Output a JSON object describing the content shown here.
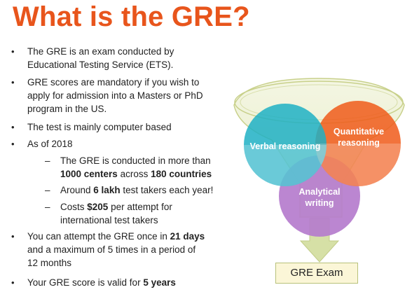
{
  "title": "What is the GRE?",
  "bullets": {
    "b1_l1": "The GRE is an exam conducted by",
    "b1_l2": "Educational Testing Service (ETS).",
    "b2_l1": "GRE scores are mandatory if you wish to",
    "b2_l2": "apply for admission into a Masters or PhD",
    "b2_l3": "program in the US.",
    "b3_l1": "The test is mainly computer based",
    "b4_l1": "As of 2018",
    "s1_l1": "The GRE is conducted in more than",
    "s1_l2_bold1": "1000 centers",
    "s1_l2_mid": " across ",
    "s1_l2_bold2": "180 countries",
    "s2_pre": "Around ",
    "s2_bold": "6 lakh",
    "s2_post": " test takers each year!",
    "s3_pre": "Costs ",
    "s3_bold": "$205",
    "s3_post": " per attempt for",
    "s3_l2": "international test takers",
    "b5_pre": "You can attempt the GRE once in ",
    "b5_bold": "21 days",
    "b5_l2": "and a maximum of 5 times in a period of",
    "b5_l3": "12 months",
    "b6_pre": "Your GRE score is valid for ",
    "b6_bold": "5 years",
    "bullet_char": "•",
    "dash_char": "–"
  },
  "diagram": {
    "verbal": "Verbal reasoning",
    "quant_l1": "Quantitative",
    "quant_l2": "reasoning",
    "analytical_l1": "Analytical",
    "analytical_l2": "writing",
    "result": "GRE Exam",
    "colors": {
      "verbal": "#1fb0c4",
      "quant": "#f05a1a",
      "analytical": "#b57ccd",
      "funnel": "#e4e9bf",
      "arrow": "#d6e0a6"
    }
  }
}
